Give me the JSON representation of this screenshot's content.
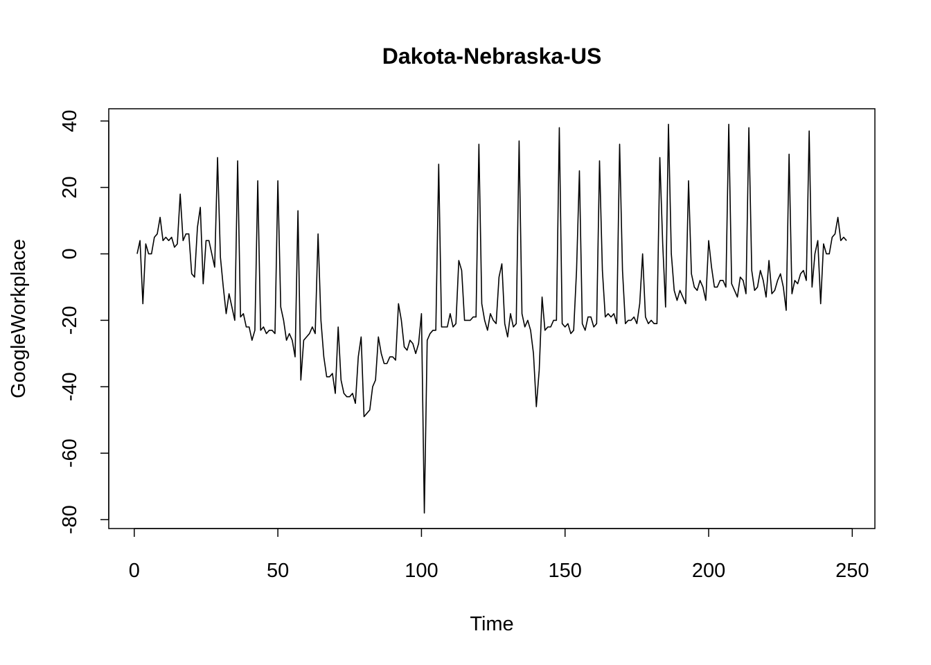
{
  "chart_data": {
    "type": "line",
    "title": "Dakota-Nebraska-US",
    "x_label": "Time",
    "y_label": "GoogleWorkplace",
    "color": "#000000",
    "x": [
      1,
      2,
      3,
      4,
      5,
      6,
      7,
      8,
      9,
      10,
      11,
      12,
      13,
      14,
      15,
      16,
      17,
      18,
      19,
      20,
      21,
      22,
      23,
      24,
      25,
      26,
      27,
      28,
      29,
      30,
      31,
      32,
      33,
      34,
      35,
      36,
      37,
      38,
      39,
      40,
      41,
      42,
      43,
      44,
      45,
      46,
      47,
      48,
      49,
      50,
      51,
      52,
      53,
      54,
      55,
      56,
      57,
      58,
      59,
      60,
      61,
      62,
      63,
      64,
      65,
      66,
      67,
      68,
      69,
      70,
      71,
      72,
      73,
      74,
      75,
      76,
      77,
      78,
      79,
      80,
      81,
      82,
      83,
      84,
      85,
      86,
      87,
      88,
      89,
      90,
      91,
      92,
      93,
      94,
      95,
      96,
      97,
      98,
      99,
      100,
      101,
      102,
      103,
      104,
      105,
      106,
      107,
      108,
      109,
      110,
      111,
      112,
      113,
      114,
      115,
      116,
      117,
      118,
      119,
      120,
      121,
      122,
      123,
      124,
      125,
      126,
      127,
      128,
      129,
      130,
      131,
      132,
      133,
      134,
      135,
      136,
      137,
      138,
      139,
      140,
      141,
      142,
      143,
      144,
      145,
      146,
      147,
      148,
      149,
      150,
      151,
      152,
      153,
      154,
      155,
      156,
      157,
      158,
      159,
      160,
      161,
      162,
      163,
      164,
      165,
      166,
      167,
      168,
      169,
      170,
      171,
      172,
      173,
      174,
      175,
      176,
      177,
      178,
      179,
      180,
      181,
      182,
      183,
      184,
      185,
      186,
      187,
      188,
      189,
      190,
      191,
      192,
      193,
      194,
      195,
      196,
      197,
      198,
      199,
      200,
      201,
      202,
      203,
      204,
      205,
      206,
      207,
      208,
      209,
      210,
      211,
      212,
      213,
      214,
      215,
      216,
      217,
      218,
      219,
      220,
      221,
      222,
      223,
      224,
      225,
      226,
      227,
      228,
      229,
      230,
      231,
      232,
      233,
      234,
      235,
      236,
      237,
      238,
      239,
      240,
      241,
      242,
      243,
      244,
      245,
      246,
      247,
      248
    ],
    "values": [
      0,
      4,
      -15,
      3,
      0,
      0,
      5,
      6,
      11,
      4,
      5,
      4,
      5,
      2,
      3,
      18,
      4,
      6,
      6,
      -6,
      -7,
      8,
      14,
      -9,
      4,
      4,
      0,
      -4,
      29,
      -1,
      -10,
      -18,
      -12,
      -16,
      -20,
      28,
      -19,
      -18,
      -22,
      -22,
      -26,
      -23,
      22,
      -23,
      -22,
      -24,
      -23,
      -23,
      -24,
      22,
      -16,
      -20,
      -26,
      -24,
      -26,
      -31,
      13,
      -38,
      -26,
      -25,
      -24,
      -22,
      -24,
      6,
      -20,
      -31,
      -37,
      -37,
      -36,
      -42,
      -22,
      -38,
      -42,
      -43,
      -43,
      -42,
      -45,
      -31,
      -25,
      -49,
      -48,
      -47,
      -40,
      -38,
      -25,
      -30,
      -33,
      -33,
      -31,
      -31,
      -32,
      -15,
      -20,
      -28,
      -29,
      -26,
      -27,
      -30,
      -27,
      -18,
      -78,
      -26,
      -24,
      -23,
      -23,
      27,
      -22,
      -22,
      -22,
      -18,
      -22,
      -21,
      -2,
      -5,
      -20,
      -20,
      -20,
      -19,
      -19,
      33,
      -15,
      -20,
      -23,
      -18,
      -20,
      -21,
      -7,
      -3,
      -21,
      -25,
      -18,
      -22,
      -21,
      34,
      -18,
      -22,
      -20,
      -23,
      -30,
      -46,
      -35,
      -13,
      -23,
      -22,
      -22,
      -20,
      -20,
      38,
      -21,
      -22,
      -21,
      -24,
      -23,
      -5,
      25,
      -21,
      -23,
      -19,
      -19,
      -22,
      -21,
      28,
      -5,
      -19,
      -18,
      -19,
      -18,
      -21,
      33,
      -5,
      -21,
      -20,
      -20,
      -19,
      -21,
      -15,
      0,
      -19,
      -21,
      -20,
      -21,
      -21,
      29,
      3,
      -16,
      39,
      0,
      -11,
      -14,
      -11,
      -13,
      -15,
      22,
      -6,
      -10,
      -11,
      -8,
      -10,
      -14,
      4,
      -4,
      -10,
      -10,
      -8,
      -8,
      -10,
      39,
      -9,
      -11,
      -13,
      -7,
      -8,
      -12,
      38,
      -5,
      -11,
      -10,
      -5,
      -8,
      -13,
      -2,
      -12,
      -11,
      -8,
      -6,
      -10,
      -17,
      30,
      -12,
      -8,
      -9,
      -6,
      -5,
      -8,
      37,
      -10,
      0,
      4,
      -15,
      3,
      0,
      0,
      5,
      6,
      11,
      4,
      5,
      4
    ],
    "xlim": [
      -8.88,
      257.88
    ],
    "ylim": [
      -82.68,
      43.68
    ],
    "xticks": [
      0,
      50,
      100,
      150,
      200,
      250
    ],
    "yticks": [
      -80,
      -60,
      -40,
      -20,
      0,
      20,
      40
    ]
  }
}
